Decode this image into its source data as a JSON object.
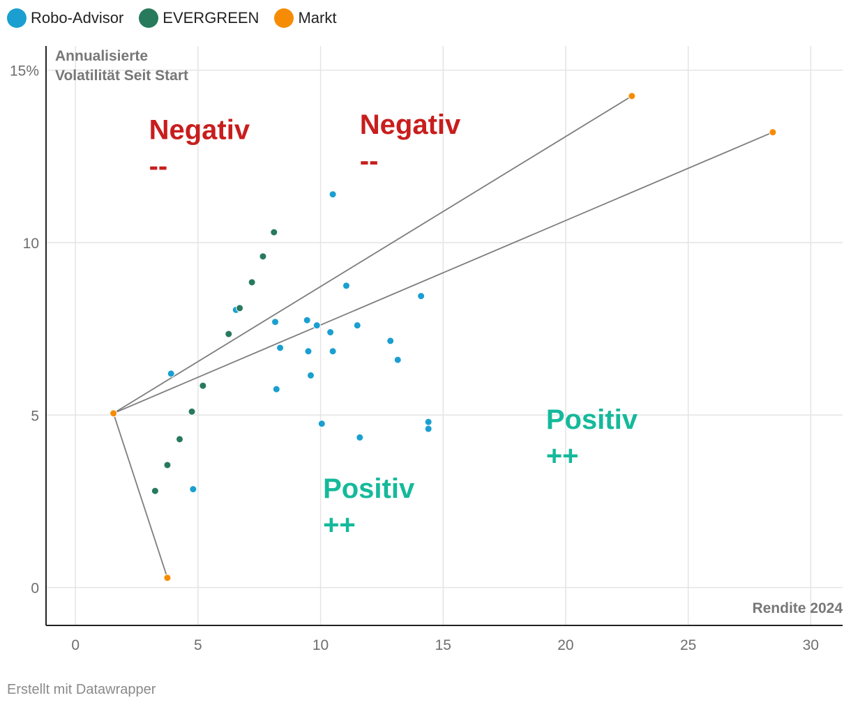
{
  "legend": [
    {
      "label": "Robo-Advisor",
      "color": "#1a9fd0"
    },
    {
      "label": "EVERGREEN",
      "color": "#277a5c"
    },
    {
      "label": "Markt",
      "color": "#f68c06"
    }
  ],
  "footer": "Erstellt mit Datawrapper",
  "chart_data": {
    "type": "scatter",
    "xlabel": "Rendite 2024",
    "ylabel": "Annualisierte Volatilität Seit Start",
    "ylabel_lines": [
      "Annualisierte",
      "Volatilität Seit Start"
    ],
    "xlim": [
      -1.2,
      31.3
    ],
    "ylim": [
      -1.1,
      15.7
    ],
    "x_ticks": [
      0,
      5,
      10,
      15,
      20,
      25,
      30
    ],
    "x_tick_labels": [
      "0",
      "5",
      "10",
      "15",
      "20",
      "25",
      "30"
    ],
    "y_ticks": [
      0,
      5,
      10,
      15
    ],
    "y_tick_labels": [
      "0",
      "5",
      "10",
      "15%"
    ],
    "grid": true,
    "annotations": [
      {
        "text": "Negativ",
        "sub": "--",
        "x": 3.0,
        "y": 13.0,
        "color": "#c71e1d"
      },
      {
        "text": "Negativ",
        "sub": "--",
        "x": 11.6,
        "y": 13.15,
        "color": "#c71e1d"
      },
      {
        "text": "Positiv",
        "sub": "++",
        "x": 19.2,
        "y": 4.6,
        "color": "#15b99b"
      },
      {
        "text": "Positiv",
        "sub": "++",
        "x": 10.1,
        "y": 2.6,
        "color": "#15b99b"
      }
    ],
    "lines": [
      {
        "from": [
          1.55,
          5.05
        ],
        "to": [
          22.7,
          14.25
        ]
      },
      {
        "from": [
          1.55,
          5.05
        ],
        "to": [
          28.45,
          13.2
        ]
      },
      {
        "from": [
          1.55,
          5.05
        ],
        "to": [
          3.75,
          0.28
        ]
      }
    ],
    "series": [
      {
        "name": "Robo-Advisor",
        "color": "#1a9fd0",
        "points": [
          [
            3.9,
            6.2
          ],
          [
            4.8,
            2.85
          ],
          [
            6.55,
            8.05
          ],
          [
            8.15,
            7.7
          ],
          [
            8.35,
            6.95
          ],
          [
            8.2,
            5.75
          ],
          [
            9.45,
            7.75
          ],
          [
            9.5,
            6.85
          ],
          [
            9.85,
            7.6
          ],
          [
            10.4,
            7.4
          ],
          [
            10.5,
            6.85
          ],
          [
            9.6,
            6.15
          ],
          [
            10.05,
            4.75
          ],
          [
            11.05,
            8.75
          ],
          [
            11.5,
            7.6
          ],
          [
            10.5,
            11.4
          ],
          [
            11.6,
            4.35
          ],
          [
            12.85,
            7.15
          ],
          [
            13.15,
            6.6
          ],
          [
            14.1,
            8.45
          ],
          [
            14.4,
            4.8
          ],
          [
            14.4,
            4.6
          ]
        ]
      },
      {
        "name": "EVERGREEN",
        "color": "#277a5c",
        "points": [
          [
            3.25,
            2.8
          ],
          [
            3.75,
            3.55
          ],
          [
            4.25,
            4.3
          ],
          [
            4.75,
            5.1
          ],
          [
            5.2,
            5.85
          ],
          [
            6.25,
            7.35
          ],
          [
            6.7,
            8.1
          ],
          [
            7.2,
            8.85
          ],
          [
            7.65,
            9.6
          ],
          [
            8.1,
            10.3
          ]
        ]
      },
      {
        "name": "Markt",
        "color": "#f68c06",
        "points": [
          [
            1.55,
            5.05
          ],
          [
            3.75,
            0.28
          ],
          [
            22.7,
            14.25
          ],
          [
            28.45,
            13.2
          ]
        ]
      }
    ]
  }
}
